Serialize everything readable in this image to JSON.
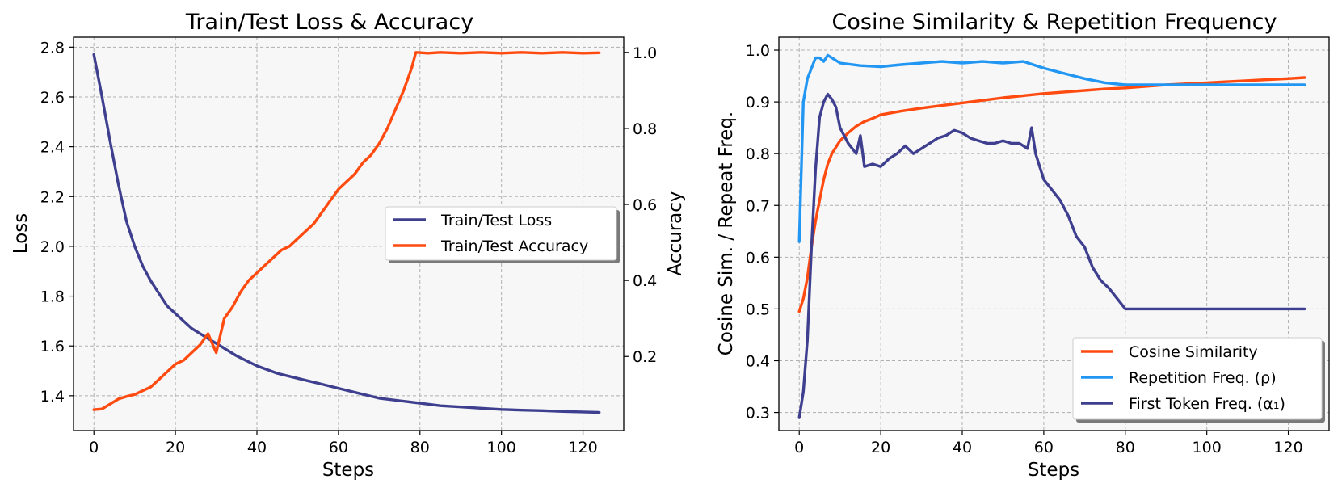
{
  "chart_data": [
    {
      "type": "line",
      "title": "Train/Test Loss & Accuracy",
      "xlabel": "Steps",
      "ylabel": "Loss",
      "y2label": "Accuracy",
      "xlim": [
        -5,
        130
      ],
      "ylim": [
        1.26,
        2.84
      ],
      "y2lim": [
        0.005,
        1.04
      ],
      "xticks": [
        0,
        20,
        40,
        60,
        80,
        100,
        120
      ],
      "yticks": [
        1.4,
        1.6,
        1.8,
        2.0,
        2.2,
        2.4,
        2.6,
        2.8
      ],
      "y2ticks": [
        0.2,
        0.4,
        0.6,
        0.8,
        1.0
      ],
      "grid": true,
      "legend_position": "center-right",
      "series": [
        {
          "name": "Train/Test Loss",
          "axis": "left",
          "color": "#3f3f8f",
          "x": [
            0,
            2,
            4,
            6,
            8,
            10,
            12,
            14,
            16,
            18,
            20,
            22,
            24,
            26,
            28,
            30,
            35,
            40,
            45,
            50,
            55,
            60,
            65,
            70,
            75,
            80,
            85,
            90,
            95,
            100,
            105,
            110,
            115,
            120,
            124
          ],
          "y": [
            2.77,
            2.6,
            2.42,
            2.25,
            2.1,
            2.0,
            1.92,
            1.86,
            1.81,
            1.76,
            1.73,
            1.7,
            1.67,
            1.65,
            1.63,
            1.61,
            1.56,
            1.52,
            1.49,
            1.47,
            1.45,
            1.43,
            1.41,
            1.39,
            1.38,
            1.37,
            1.36,
            1.355,
            1.35,
            1.345,
            1.342,
            1.34,
            1.337,
            1.335,
            1.333
          ]
        },
        {
          "name": "Train/Test Accuracy",
          "axis": "right",
          "color": "#ff4a10",
          "x": [
            0,
            2,
            4,
            6,
            8,
            10,
            12,
            14,
            16,
            18,
            20,
            22,
            24,
            26,
            28,
            30,
            32,
            34,
            36,
            38,
            40,
            42,
            44,
            46,
            48,
            50,
            52,
            54,
            56,
            58,
            60,
            62,
            64,
            66,
            68,
            70,
            72,
            74,
            76,
            78,
            79,
            82,
            85,
            90,
            95,
            100,
            105,
            110,
            115,
            120,
            124
          ],
          "y": [
            0.06,
            0.062,
            0.075,
            0.088,
            0.095,
            0.1,
            0.11,
            0.12,
            0.14,
            0.16,
            0.18,
            0.19,
            0.21,
            0.23,
            0.26,
            0.21,
            0.3,
            0.33,
            0.37,
            0.4,
            0.42,
            0.44,
            0.46,
            0.48,
            0.49,
            0.51,
            0.53,
            0.55,
            0.58,
            0.61,
            0.64,
            0.66,
            0.68,
            0.71,
            0.73,
            0.76,
            0.8,
            0.85,
            0.9,
            0.96,
            1.0,
            0.998,
            1.0,
            0.998,
            1.0,
            0.998,
            1.0,
            0.998,
            1.0,
            0.998,
            0.999
          ]
        }
      ]
    },
    {
      "type": "line",
      "title": "Cosine Similarity & Repetition Frequency",
      "xlabel": "Steps",
      "ylabel": "Cosine Sim. / Repeat Freq.",
      "xlim": [
        -5,
        130
      ],
      "ylim": [
        0.265,
        1.025
      ],
      "xticks": [
        0,
        20,
        40,
        60,
        80,
        100,
        120
      ],
      "yticks": [
        0.3,
        0.4,
        0.5,
        0.6,
        0.7,
        0.8,
        0.9,
        1.0
      ],
      "grid": true,
      "legend_position": "lower-right",
      "series": [
        {
          "name": "Cosine Similarity",
          "color": "#ff4a10",
          "x": [
            0,
            1,
            2,
            3,
            4,
            5,
            6,
            7,
            8,
            10,
            12,
            14,
            16,
            18,
            20,
            25,
            30,
            35,
            40,
            45,
            50,
            55,
            60,
            65,
            70,
            75,
            80,
            85,
            90,
            95,
            100,
            105,
            110,
            115,
            120,
            124
          ],
          "y": [
            0.495,
            0.52,
            0.56,
            0.62,
            0.67,
            0.71,
            0.75,
            0.78,
            0.8,
            0.825,
            0.84,
            0.853,
            0.862,
            0.868,
            0.875,
            0.882,
            0.888,
            0.893,
            0.898,
            0.903,
            0.908,
            0.912,
            0.916,
            0.919,
            0.922,
            0.925,
            0.927,
            0.93,
            0.933,
            0.935,
            0.937,
            0.939,
            0.941,
            0.943,
            0.945,
            0.947
          ]
        },
        {
          "name": "Repetition Freq. (ρ)",
          "color": "#2196f3",
          "x": [
            0,
            1,
            2,
            3,
            4,
            5,
            6,
            7,
            8,
            10,
            15,
            20,
            25,
            30,
            35,
            40,
            45,
            50,
            55,
            60,
            65,
            70,
            75,
            80,
            90,
            100,
            110,
            120,
            124
          ],
          "y": [
            0.63,
            0.9,
            0.945,
            0.965,
            0.985,
            0.985,
            0.978,
            0.99,
            0.985,
            0.975,
            0.97,
            0.968,
            0.972,
            0.975,
            0.978,
            0.975,
            0.978,
            0.975,
            0.978,
            0.965,
            0.955,
            0.945,
            0.937,
            0.933,
            0.933,
            0.933,
            0.933,
            0.933,
            0.933
          ]
        },
        {
          "name": "First Token Freq. (α₁)",
          "color": "#3f3f8f",
          "x": [
            0,
            1,
            2,
            3,
            4,
            5,
            6,
            7,
            8,
            9,
            10,
            12,
            14,
            15,
            16,
            18,
            20,
            22,
            24,
            26,
            28,
            30,
            32,
            34,
            36,
            38,
            40,
            42,
            44,
            46,
            48,
            50,
            52,
            54,
            56,
            57,
            58,
            60,
            62,
            64,
            66,
            68,
            70,
            72,
            74,
            76,
            78,
            80,
            90,
            100,
            110,
            120,
            124
          ],
          "y": [
            0.29,
            0.34,
            0.44,
            0.62,
            0.77,
            0.87,
            0.9,
            0.915,
            0.905,
            0.89,
            0.85,
            0.82,
            0.8,
            0.835,
            0.775,
            0.78,
            0.775,
            0.79,
            0.8,
            0.815,
            0.8,
            0.81,
            0.82,
            0.83,
            0.835,
            0.845,
            0.84,
            0.83,
            0.825,
            0.82,
            0.82,
            0.825,
            0.82,
            0.82,
            0.81,
            0.85,
            0.8,
            0.75,
            0.73,
            0.71,
            0.68,
            0.64,
            0.62,
            0.58,
            0.555,
            0.54,
            0.52,
            0.5,
            0.5,
            0.5,
            0.5,
            0.5,
            0.5
          ]
        }
      ]
    }
  ]
}
